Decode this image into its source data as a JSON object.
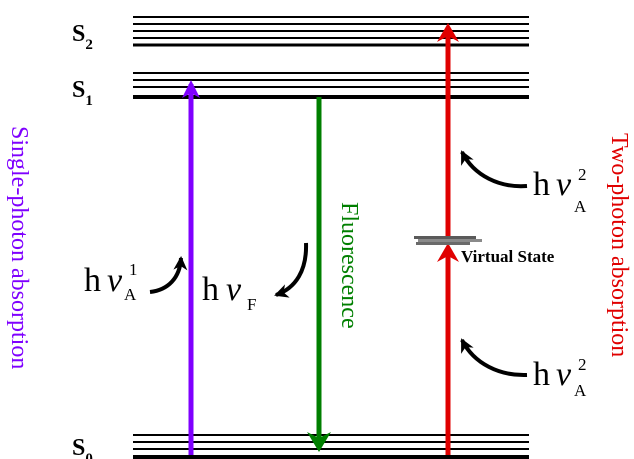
{
  "levels": {
    "s2": {
      "label": "S",
      "subscript": "2"
    },
    "s1": {
      "label": "S",
      "subscript": "1"
    },
    "s0": {
      "label": "S",
      "subscript": "0"
    }
  },
  "processes": {
    "single_photon": {
      "label": "Single-photon absorption",
      "color": "#7f00ff"
    },
    "fluorescence": {
      "label": "Fluorescence",
      "color": "#007f00"
    },
    "two_photon": {
      "label": "Two-photon absorption",
      "color": "#e00000"
    }
  },
  "virtual_state": {
    "label": "Virtual State",
    "color": "#808080"
  },
  "photons": {
    "absorption_single": {
      "h": "h",
      "nu": "ν",
      "sub": "A",
      "sup": "1"
    },
    "fluorescence": {
      "h": "h",
      "nu": "ν",
      "sub": "F"
    },
    "absorption_two_upper": {
      "h": "h",
      "nu": "ν",
      "sub": "A",
      "sup": "2"
    },
    "absorption_two_lower": {
      "h": "h",
      "nu": "ν",
      "sub": "A",
      "sup": "2"
    }
  },
  "colors": {
    "level_line": "#000000",
    "curved_arrow": "#000000"
  }
}
